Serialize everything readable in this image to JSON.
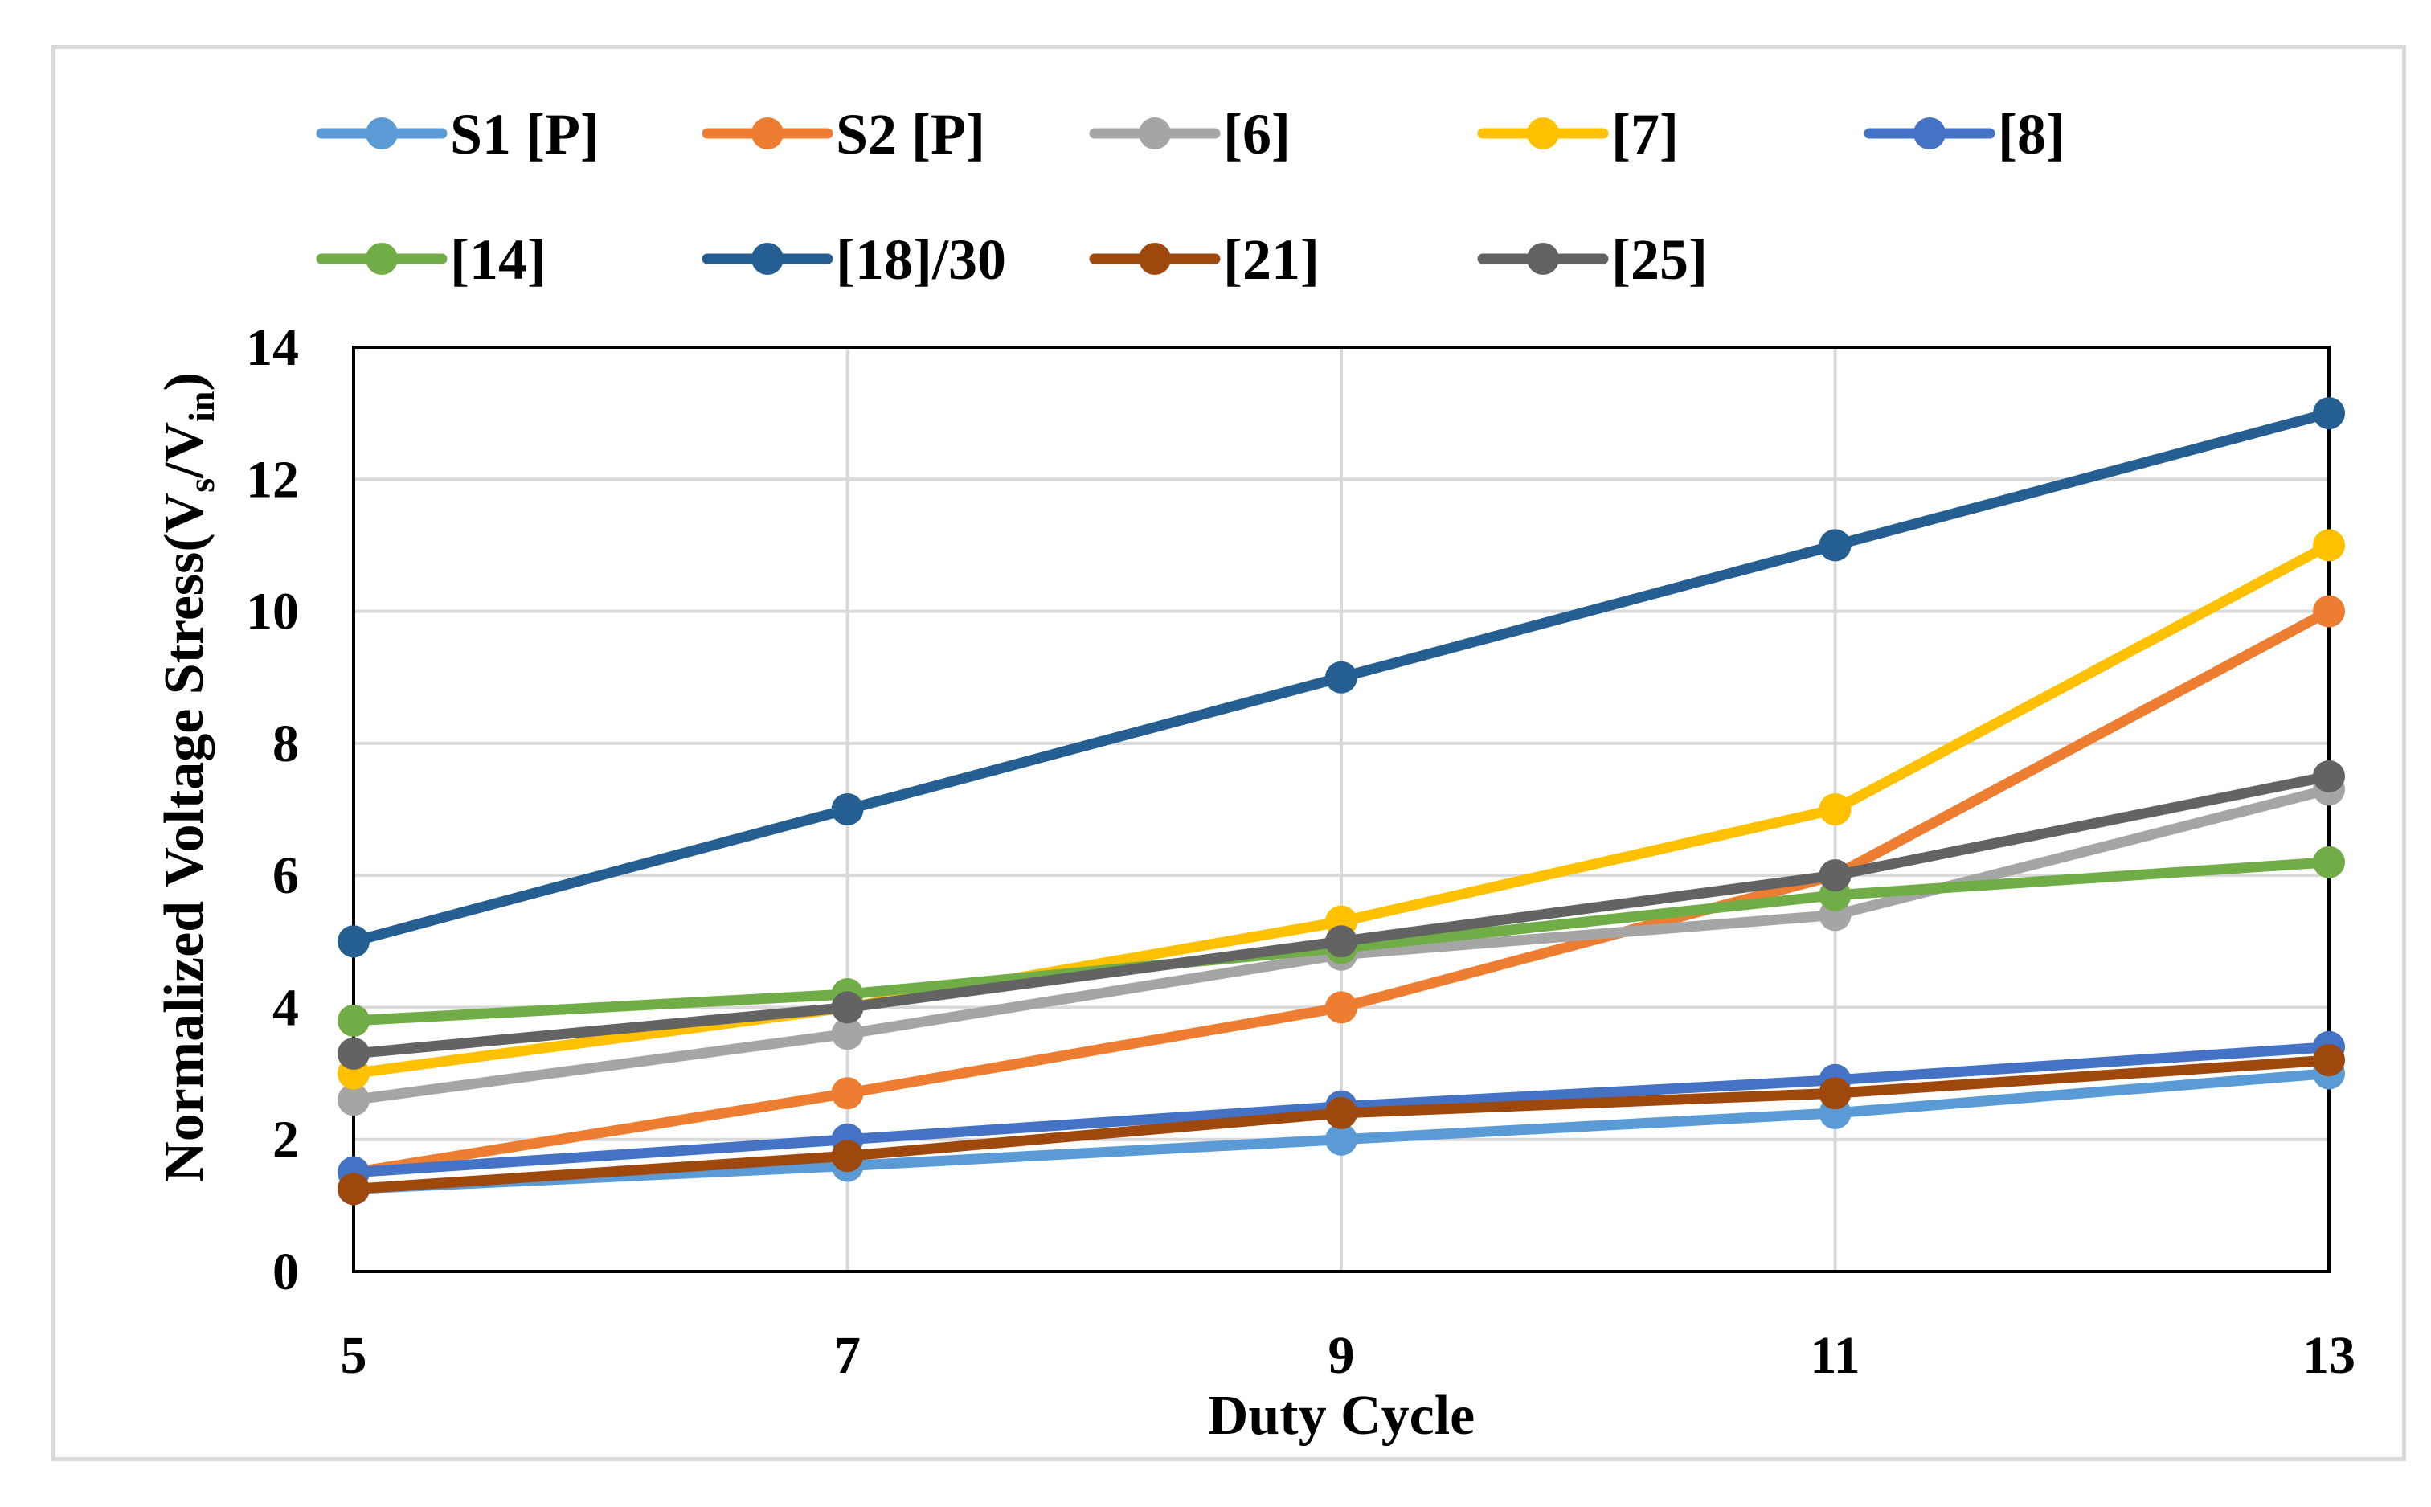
{
  "chart_data": {
    "type": "line",
    "title": "",
    "xlabel": "Duty Cycle",
    "ylabel": "Normalized  Voltage Stress(V",
    "ylabel_sub1": "s",
    "ylabel_mid": "/V",
    "ylabel_sub2": "in",
    "ylabel_end": ")",
    "x": [
      5,
      7,
      9,
      11,
      13
    ],
    "x_tick_labels": [
      "5",
      "7",
      "9",
      "11",
      "13"
    ],
    "xlim": [
      5,
      13
    ],
    "ylim": [
      0,
      14
    ],
    "y_ticks": [
      0,
      2,
      4,
      6,
      8,
      10,
      12,
      14
    ],
    "y_tick_labels": [
      "0",
      "2",
      "4",
      "6",
      "8",
      "10",
      "12",
      "14"
    ],
    "grid": true,
    "legend_position": "top",
    "series": [
      {
        "name": "S1 [P]",
        "color": "#5B9BD5",
        "values": [
          1.25,
          1.6,
          2.0,
          2.4,
          3.0
        ]
      },
      {
        "name": "S2 [P]",
        "color": "#ED7D31",
        "values": [
          1.5,
          2.7,
          4.0,
          6.0,
          10.0
        ]
      },
      {
        "name": "[6]",
        "color": "#A5A5A5",
        "values": [
          2.6,
          3.6,
          4.8,
          5.4,
          7.3
        ]
      },
      {
        "name": "[7]",
        "color": "#FFC000",
        "values": [
          3.0,
          4.0,
          5.3,
          7.0,
          11.0
        ]
      },
      {
        "name": "[8]",
        "color": "#4472C4",
        "values": [
          1.5,
          2.0,
          2.5,
          2.9,
          3.4
        ]
      },
      {
        "name": "[14]",
        "color": "#70AD47",
        "values": [
          3.8,
          4.2,
          4.9,
          5.7,
          6.2
        ]
      },
      {
        "name": "[18]/30",
        "color": "#255E91",
        "values": [
          5.0,
          7.0,
          9.0,
          11.0,
          13.0
        ]
      },
      {
        "name": "[21]",
        "color": "#9E480E",
        "values": [
          1.25,
          1.75,
          2.4,
          2.7,
          3.2
        ]
      },
      {
        "name": "[25]",
        "color": "#636363",
        "values": [
          3.3,
          4.0,
          5.0,
          6.0,
          7.5
        ]
      }
    ]
  }
}
